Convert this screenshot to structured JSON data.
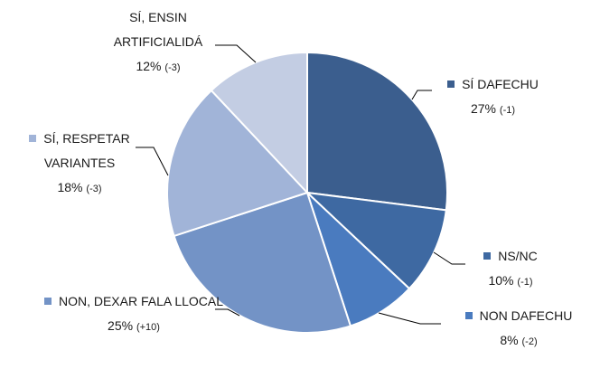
{
  "chart_data": {
    "type": "pie",
    "categories": [
      "SÍ DAFECHU",
      "NS/NC",
      "NON DAFECHU",
      "NON, DEXAR FALA LLOCAL",
      "SÍ, RESPETAR VARIANTES",
      "SÍ, ENSIN ARTIFICIALIDÁ"
    ],
    "values": [
      27,
      10,
      8,
      25,
      18,
      12
    ],
    "value_labels": [
      "27%",
      "10%",
      "8%",
      "25%",
      "18%",
      "12%"
    ],
    "changes": [
      "(-1)",
      "(-1)",
      "(-2)",
      "(+10)",
      "(-3)",
      "(-3)"
    ],
    "colors": [
      "#3b5e8e",
      "#3e69a2",
      "#4a7bbf",
      "#7393c6",
      "#a1b4d8",
      "#c3cde3"
    ]
  }
}
